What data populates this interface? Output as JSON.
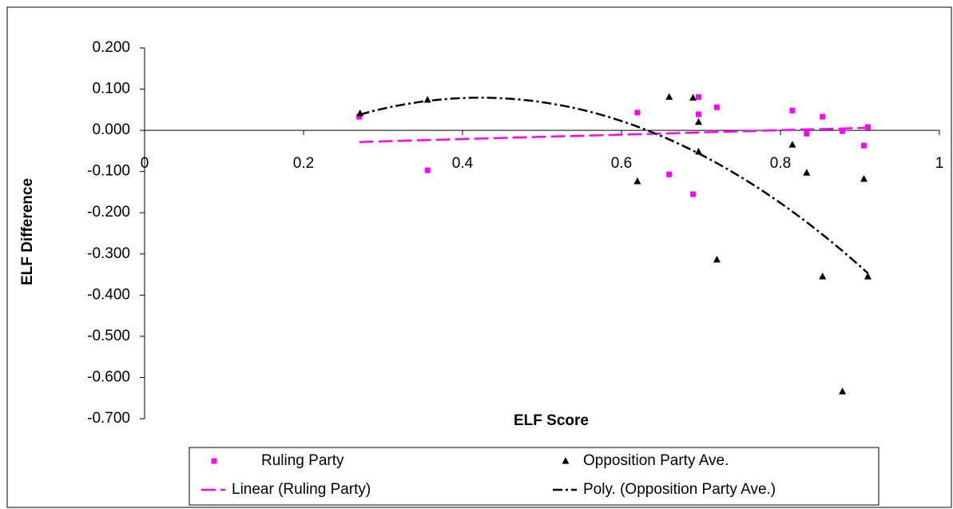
{
  "chart_data": {
    "type": "scatter",
    "xlabel": "ELF Score",
    "ylabel": "ELF Difference",
    "xlim": [
      0,
      1
    ],
    "xticks": [
      0,
      0.2,
      0.4,
      0.6,
      0.8,
      1
    ],
    "ylim": [
      -0.7,
      0.2
    ],
    "yticks": [
      {
        "value": 0.2,
        "label": "0.200"
      },
      {
        "value": 0.1,
        "label": "0.100"
      },
      {
        "value": 0,
        "label": "0.000"
      },
      {
        "value": -0.1,
        "label": "-0.100"
      },
      {
        "value": -0.2,
        "label": "-0.200"
      },
      {
        "value": -0.3,
        "label": "-0.300"
      },
      {
        "value": -0.4,
        "label": "-0.400"
      },
      {
        "value": -0.5,
        "label": "-0.500"
      },
      {
        "value": -0.6,
        "label": "-0.600"
      },
      {
        "value": -0.7,
        "label": "-0.700"
      }
    ],
    "series": [
      {
        "name": "Ruling Party",
        "color": "#ff00ff",
        "marker": "square",
        "x": [
          0.27,
          0.356,
          0.62,
          0.66,
          0.69,
          0.697,
          0.697,
          0.72,
          0.815,
          0.833,
          0.853,
          0.878,
          0.905,
          0.91
        ],
        "values": [
          0.033,
          -0.097,
          0.043,
          -0.107,
          -0.155,
          0.081,
          0.039,
          0.056,
          0.048,
          -0.008,
          0.033,
          -0.002,
          -0.037,
          0.008
        ],
        "trendline": {
          "name": "Linear (Ruling Party)",
          "order": 1
        }
      },
      {
        "name": "Opposition Party Ave.",
        "color": "#000000",
        "marker": "triangle",
        "x": [
          0.271,
          0.356,
          0.62,
          0.66,
          0.69,
          0.697,
          0.697,
          0.72,
          0.815,
          0.833,
          0.853,
          0.878,
          0.905,
          0.91
        ],
        "values": [
          0.041,
          0.074,
          -0.124,
          0.081,
          0.079,
          0.02,
          -0.052,
          -0.314,
          -0.035,
          -0.103,
          -0.355,
          -0.634,
          -0.118,
          -0.355
        ],
        "trendline": {
          "name": "Poly. (Opposition Party Ave.)",
          "order": 2
        }
      }
    ]
  }
}
